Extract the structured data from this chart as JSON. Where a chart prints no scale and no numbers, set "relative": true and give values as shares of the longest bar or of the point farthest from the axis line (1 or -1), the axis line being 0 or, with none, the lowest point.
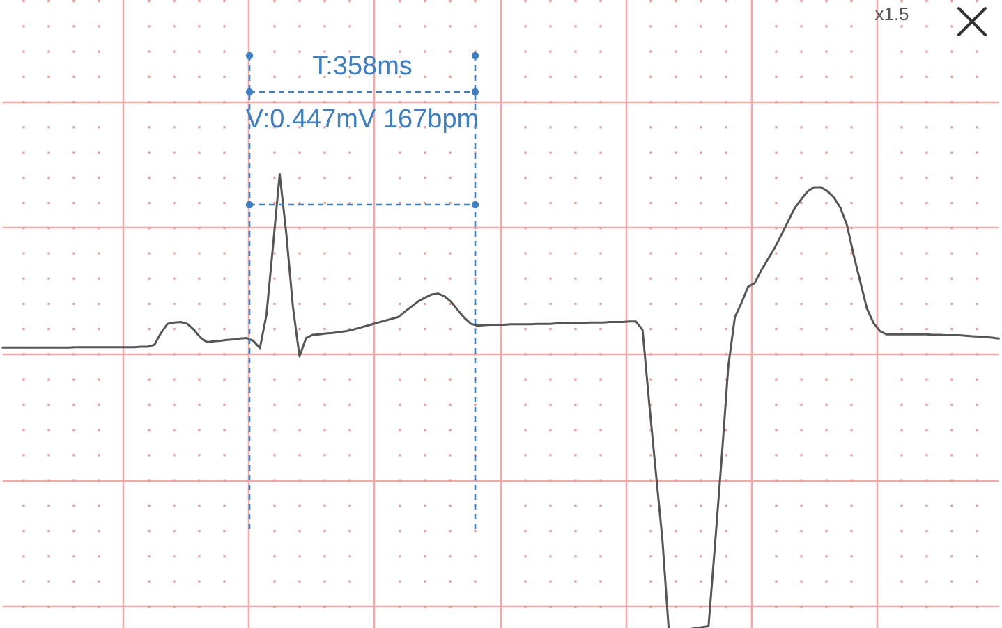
{
  "chart_data": {
    "type": "line",
    "relative": true,
    "categories": [
      null,
      null,
      null,
      null,
      null,
      null,
      null,
      null,
      null,
      null,
      null,
      null,
      null,
      null,
      null,
      null,
      null,
      null,
      null,
      null,
      null,
      null,
      null,
      null,
      null,
      null,
      null,
      null,
      null,
      null,
      null,
      null,
      null,
      null,
      null,
      null,
      null,
      null,
      null,
      null,
      null,
      null,
      null,
      null,
      null,
      null,
      null,
      null,
      null,
      null,
      null,
      null,
      null,
      null,
      null,
      null,
      null,
      null,
      null,
      null,
      null,
      null,
      null,
      null,
      null,
      null,
      null,
      null,
      null,
      null,
      null,
      null,
      null,
      null,
      null,
      null,
      null,
      null,
      null,
      null,
      null,
      null,
      null,
      null,
      null,
      null,
      null,
      null,
      null,
      null,
      null,
      null,
      null,
      null,
      null,
      null,
      null,
      null,
      null,
      null,
      null,
      null,
      null,
      null,
      null,
      null,
      null,
      null,
      null,
      null,
      null,
      null,
      null,
      null,
      null,
      null,
      null,
      null,
      null,
      null,
      null,
      null,
      null,
      null,
      null,
      null,
      null,
      null,
      null,
      null,
      null,
      null,
      null,
      null,
      null,
      null,
      null,
      null,
      null,
      null,
      null,
      null,
      null,
      null,
      null,
      null,
      null,
      null,
      null,
      null,
      null,
      null
    ],
    "values": [
      0.621,
      0.621,
      0.621,
      0.621,
      0.621,
      0.621,
      0.621,
      0.621,
      0.621,
      0.621,
      0.621,
      0.622,
      0.622,
      0.622,
      0.622,
      0.622,
      0.622,
      0.622,
      0.622,
      0.622,
      0.622,
      0.623,
      0.623,
      0.627,
      0.653,
      0.673,
      0.676,
      0.677,
      0.673,
      0.66,
      0.643,
      0.633,
      0.635,
      0.636,
      0.638,
      0.639,
      0.641,
      0.642,
      0.636,
      0.62,
      0.693,
      0.845,
      1,
      0.87,
      0.711,
      0.602,
      0.642,
      0.649,
      0.65,
      0.652,
      0.653,
      0.655,
      0.657,
      0.66,
      0.664,
      0.668,
      0.672,
      0.676,
      0.68,
      0.684,
      0.688,
      0.7,
      0.711,
      0.722,
      0.73,
      0.737,
      0.739,
      0.733,
      0.721,
      0.703,
      0.686,
      0.673,
      0.669,
      0.67,
      0.671,
      0.671,
      0.671,
      0.672,
      0.672,
      0.672,
      0.672,
      0.673,
      0.673,
      0.673,
      0.674,
      0.674,
      0.675,
      0.675,
      0.675,
      0.676,
      0.676,
      0.676,
      0.677,
      0.677,
      0.677,
      0.678,
      0.678,
      0.66,
      0.501,
      0.351,
      0.204,
      0,
      null,
      null,
      null,
      null,
      null,
      0.013,
      0.194,
      0.381,
      0.581,
      0.688,
      0.719,
      0.754,
      0.762,
      0.79,
      0.814,
      0.838,
      0.866,
      0.895,
      0.924,
      0.944,
      0.962,
      0.971,
      0.971,
      0.963,
      0.949,
      0.926,
      0.888,
      0.823,
      0.765,
      0.707,
      0.675,
      0.657,
      0.65,
      0.65,
      0.65,
      0.65,
      0.65,
      0.65,
      0.65,
      0.649,
      0.649,
      0.648,
      0.648,
      0.648,
      0.647,
      0.646,
      0.645,
      0.644,
      0.643,
      0.641
    ],
    "color": "#555555",
    "marker": "none",
    "line_style": "solid",
    "grid": true,
    "annotations": [
      "T:358ms",
      "V:0.447mV 167bpm",
      "x1.5"
    ]
  }
}
